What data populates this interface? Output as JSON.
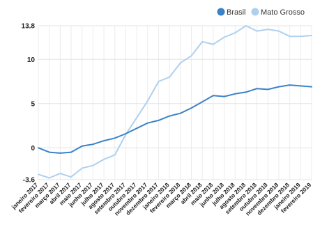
{
  "chart_data": {
    "type": "line",
    "title": "",
    "xlabel": "",
    "ylabel": "",
    "ylim": [
      -3.6,
      13.8
    ],
    "yticks": [
      -3.6,
      0,
      5,
      10,
      13.8
    ],
    "ytick_labels": [
      "-3.6",
      "0",
      "5",
      "10",
      "13.8"
    ],
    "grid": true,
    "legend_position": "top-right",
    "categories": [
      "janeiro 2017",
      "fevereiro 2017",
      "março 2017",
      "abril 2017",
      "maio 2017",
      "junho 2017",
      "julho 2017",
      "agosto 2017",
      "setembro 2017",
      "outubro 2017",
      "novembro 2017",
      "dezembro 2017",
      "janeiro 2018",
      "fevereiro 2018",
      "março 2018",
      "abril 2018",
      "maio 2018",
      "junho 2018",
      "julho 2018",
      "agosto 2018",
      "setembro 2018",
      "outubro 2018",
      "novembro 2018",
      "dezembro 2018",
      "janeiro 2019",
      "fevereiro 2019"
    ],
    "series": [
      {
        "name": "Brasil",
        "color": "#3b82c8",
        "values": [
          0,
          -0.5,
          -0.6,
          -0.5,
          0.2,
          0.4,
          0.8,
          1.1,
          1.6,
          2.2,
          2.8,
          3.1,
          3.6,
          3.9,
          4.5,
          5.2,
          5.9,
          5.8,
          6.1,
          6.3,
          6.7,
          6.6,
          6.9,
          7.1,
          7.0,
          6.9
        ]
      },
      {
        "name": "Mato Grosso",
        "color": "#aed0ef",
        "values": [
          -3.0,
          -3.4,
          -2.9,
          -3.3,
          -2.3,
          -2.0,
          -1.3,
          -0.8,
          1.5,
          3.4,
          5.3,
          7.5,
          8.0,
          9.6,
          10.4,
          12.0,
          11.7,
          12.5,
          13.0,
          13.8,
          13.2,
          13.4,
          13.2,
          12.6,
          12.6,
          12.7
        ]
      }
    ]
  }
}
